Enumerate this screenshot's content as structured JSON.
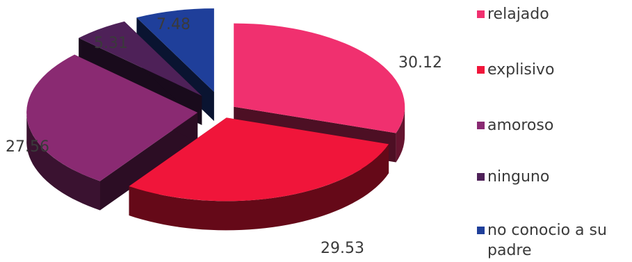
{
  "chart_data": {
    "type": "pie",
    "style": "3d-exploded",
    "title": "",
    "categories": [
      "relajado",
      "explisivo",
      "amoroso",
      "ninguno",
      "no conocio a su padre"
    ],
    "values": [
      30.12,
      29.53,
      27.56,
      5.31,
      7.48
    ],
    "value_labels": [
      "30.12",
      "29.53",
      "27.56",
      "5.31",
      "7.48"
    ],
    "colors": [
      "#f0306f",
      "#f0153a",
      "#8a2a72",
      "#4e2158",
      "#1f3f9a"
    ],
    "legend_position": "right"
  }
}
